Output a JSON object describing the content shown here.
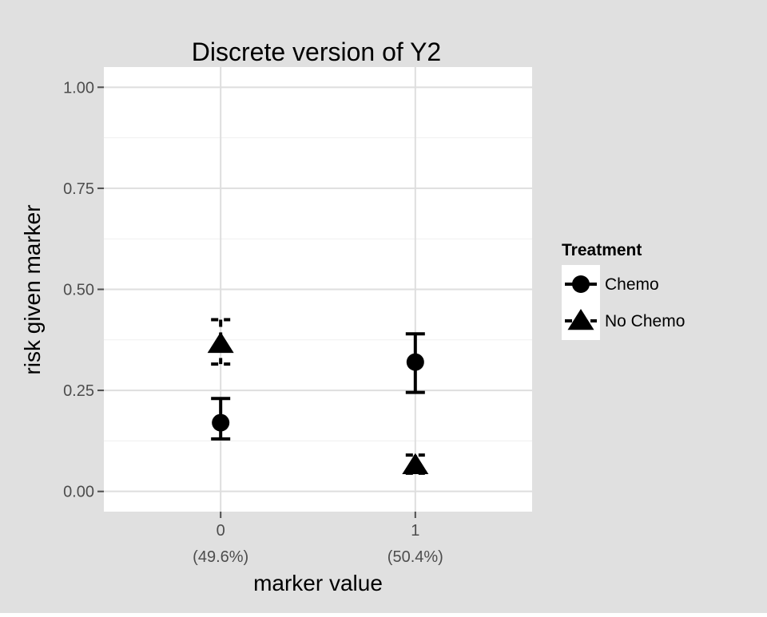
{
  "chart_data": {
    "type": "scatter",
    "title": "Discrete version of Y2",
    "xlabel": "marker value",
    "ylabel": "risk given marker",
    "x_categories": [
      {
        "value": "0",
        "share": "(49.6%)"
      },
      {
        "value": "1",
        "share": "(50.4%)"
      }
    ],
    "y_ticks": [
      "0.00",
      "0.25",
      "0.50",
      "0.75",
      "1.00"
    ],
    "ylim": [
      -0.05,
      1.05
    ],
    "grid": true,
    "legend": {
      "title": "Treatment",
      "position": "right",
      "entries": [
        "Chemo",
        "No Chemo"
      ]
    },
    "series": [
      {
        "name": "Chemo",
        "marker": "circle",
        "errorbar": "solid",
        "points": [
          {
            "x": "0",
            "y": 0.17,
            "lower": 0.13,
            "upper": 0.23
          },
          {
            "x": "1",
            "y": 0.32,
            "lower": 0.245,
            "upper": 0.39
          }
        ]
      },
      {
        "name": "No Chemo",
        "marker": "triangle",
        "errorbar": "dashed",
        "points": [
          {
            "x": "0",
            "y": 0.365,
            "lower": 0.315,
            "upper": 0.425
          },
          {
            "x": "1",
            "y": 0.065,
            "lower": 0.045,
            "upper": 0.09
          }
        ]
      }
    ],
    "colors": {
      "background": "#e0e0e0",
      "panel": "#ffffff",
      "grid_major": "#dedede",
      "grid_minor": "#efefef",
      "ink": "#000000",
      "tick_text": "#4d4d4d"
    }
  }
}
